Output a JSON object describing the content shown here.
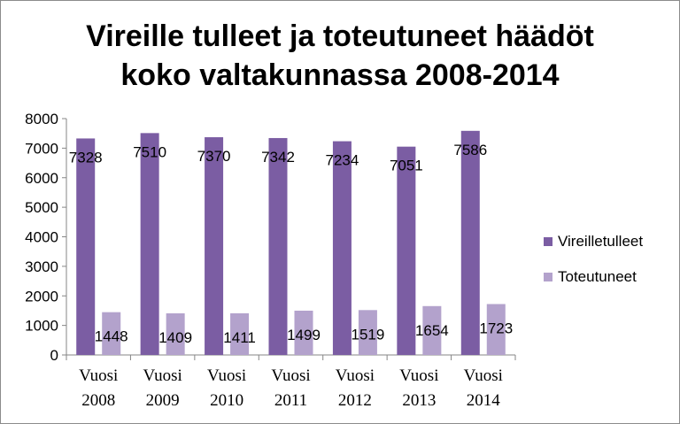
{
  "chart_data": {
    "type": "bar",
    "title_lines": [
      "Vireille tulleet ja toteutuneet häädöt",
      "koko valtakunnassa 2008-2014"
    ],
    "categories": [
      [
        "Vuosi",
        "2008"
      ],
      [
        "Vuosi",
        "2009"
      ],
      [
        "Vuosi",
        "2010"
      ],
      [
        "Vuosi",
        "2011"
      ],
      [
        "Vuosi",
        "2012"
      ],
      [
        "Vuosi",
        "2013"
      ],
      [
        "Vuosi",
        "2014"
      ]
    ],
    "series": [
      {
        "name": "Vireilletulleet",
        "color": "#7b5da3",
        "values": [
          7328,
          7510,
          7370,
          7342,
          7234,
          7051,
          7586
        ]
      },
      {
        "name": "Toteutuneet",
        "color": "#b3a2cc",
        "values": [
          1448,
          1409,
          1411,
          1499,
          1519,
          1654,
          1723
        ]
      }
    ],
    "ylim": [
      0,
      8000
    ],
    "yticks": [
      0,
      1000,
      2000,
      3000,
      4000,
      5000,
      6000,
      7000,
      8000
    ],
    "grid": false,
    "legend_position": "right"
  }
}
